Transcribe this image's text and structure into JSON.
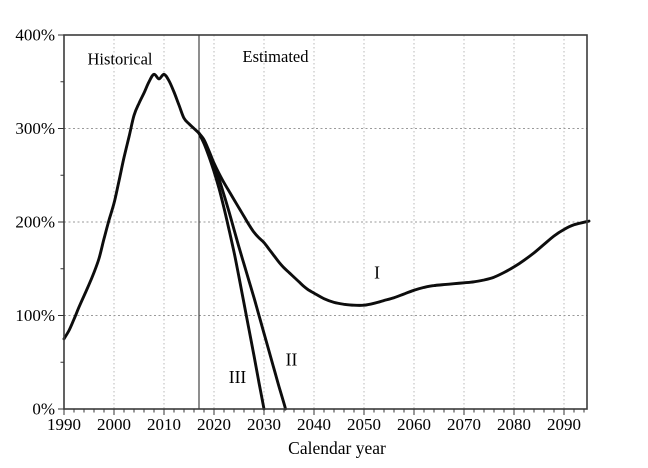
{
  "figure": {
    "xlabel": "Calendar year",
    "region_labels": [
      {
        "id": "historical",
        "text": "Historical",
        "year": 2001.2,
        "value": 374.5
      },
      {
        "id": "estimated",
        "text": "Estimated",
        "year": 2032.3,
        "value": 377
      }
    ],
    "series_labels": [
      {
        "id": "alt-1",
        "text": "I",
        "year": 2052.6,
        "value": 146
      },
      {
        "id": "alt-2",
        "text": "II",
        "year": 2035.5,
        "value": 53
      },
      {
        "id": "alt-3",
        "text": "III",
        "year": 2024.7,
        "value": 34
      }
    ]
  },
  "colors": {
    "line": "#0d0d0d",
    "frame": "#3c3c3c",
    "grid_vertical": "#b8b8b8",
    "grid_horizontal": "#9a9a9a",
    "divider": "#333333",
    "tick": "#333333",
    "background": "#ffffff"
  },
  "chart_data": {
    "type": "line",
    "title": "",
    "xlabel": "Calendar year",
    "ylabel": "",
    "xlim": [
      1990,
      2094.6
    ],
    "ylim": [
      0,
      400
    ],
    "x_ticks_major": [
      1990,
      2000,
      2010,
      2020,
      2030,
      2040,
      2050,
      2060,
      2070,
      2080,
      2090
    ],
    "x_tick_labels": [
      "1990",
      "2000",
      "2010",
      "2020",
      "2030",
      "2040",
      "2050",
      "2060",
      "2070",
      "2080",
      "2090"
    ],
    "y_ticks_major": [
      0,
      100,
      200,
      300,
      400
    ],
    "y_tick_labels": [
      "0%",
      "100%",
      "200%",
      "300%",
      "400%"
    ],
    "x_minor_step": 2,
    "y_minor_step": 50,
    "grid": "dotted",
    "legend_position": "none",
    "divider_year": 2017,
    "series": [
      {
        "name": "Historical",
        "points": [
          [
            1990,
            75
          ],
          [
            1991,
            84
          ],
          [
            1992,
            96
          ],
          [
            1993,
            109
          ],
          [
            1994,
            121
          ],
          [
            1995,
            133
          ],
          [
            1996,
            146
          ],
          [
            1997,
            161
          ],
          [
            1998,
            182
          ],
          [
            1999,
            202
          ],
          [
            2000,
            220
          ],
          [
            2001,
            244
          ],
          [
            2002,
            269
          ],
          [
            2003,
            291
          ],
          [
            2004,
            314
          ],
          [
            2005,
            327
          ],
          [
            2006,
            338
          ],
          [
            2007,
            350
          ],
          [
            2008,
            358
          ],
          [
            2009,
            353
          ],
          [
            2010,
            358
          ],
          [
            2011,
            351
          ],
          [
            2012,
            339
          ],
          [
            2013,
            325
          ],
          [
            2014,
            311
          ],
          [
            2015,
            305
          ],
          [
            2016,
            300
          ],
          [
            2017,
            295
          ]
        ]
      },
      {
        "name": "I",
        "points": [
          [
            2017,
            295
          ],
          [
            2018,
            288
          ],
          [
            2019,
            276
          ],
          [
            2020,
            263
          ],
          [
            2021,
            252
          ],
          [
            2022,
            242
          ],
          [
            2023,
            233
          ],
          [
            2024,
            224
          ],
          [
            2025,
            215
          ],
          [
            2026,
            206
          ],
          [
            2027,
            197
          ],
          [
            2028,
            189
          ],
          [
            2029,
            183
          ],
          [
            2030,
            178
          ],
          [
            2031,
            171
          ],
          [
            2032,
            164
          ],
          [
            2033,
            157
          ],
          [
            2034,
            151
          ],
          [
            2035,
            146
          ],
          [
            2036,
            141
          ],
          [
            2037,
            136
          ],
          [
            2038,
            131
          ],
          [
            2039,
            127
          ],
          [
            2040,
            124
          ],
          [
            2042,
            118
          ],
          [
            2044,
            114
          ],
          [
            2046,
            112
          ],
          [
            2048,
            111
          ],
          [
            2050,
            111
          ],
          [
            2052,
            113
          ],
          [
            2054,
            116
          ],
          [
            2056,
            119
          ],
          [
            2058,
            123
          ],
          [
            2060,
            127
          ],
          [
            2062,
            130
          ],
          [
            2064,
            132
          ],
          [
            2066,
            133
          ],
          [
            2068,
            134
          ],
          [
            2070,
            135
          ],
          [
            2072,
            136
          ],
          [
            2074,
            138
          ],
          [
            2076,
            141
          ],
          [
            2078,
            146
          ],
          [
            2080,
            152
          ],
          [
            2082,
            159
          ],
          [
            2084,
            167
          ],
          [
            2086,
            176
          ],
          [
            2088,
            185
          ],
          [
            2090,
            192
          ],
          [
            2092,
            197
          ],
          [
            2095,
            201
          ]
        ]
      },
      {
        "name": "II",
        "points": [
          [
            2017,
            295
          ],
          [
            2018,
            286
          ],
          [
            2019,
            274
          ],
          [
            2020,
            261
          ],
          [
            2021,
            246
          ],
          [
            2022,
            229
          ],
          [
            2023,
            211
          ],
          [
            2024,
            192
          ],
          [
            2025,
            173
          ],
          [
            2026,
            155
          ],
          [
            2027,
            137
          ],
          [
            2028,
            119
          ],
          [
            2029,
            100
          ],
          [
            2030,
            81
          ],
          [
            2031,
            62
          ],
          [
            2032,
            43
          ],
          [
            2033,
            24
          ],
          [
            2034,
            6
          ],
          [
            2034.3,
            0
          ]
        ]
      },
      {
        "name": "III",
        "points": [
          [
            2017,
            295
          ],
          [
            2018,
            284
          ],
          [
            2019,
            270
          ],
          [
            2020,
            254
          ],
          [
            2021,
            236
          ],
          [
            2022,
            215
          ],
          [
            2023,
            192
          ],
          [
            2024,
            168
          ],
          [
            2025,
            141
          ],
          [
            2026,
            113
          ],
          [
            2027,
            85
          ],
          [
            2028,
            57
          ],
          [
            2029,
            28
          ],
          [
            2030,
            0
          ]
        ]
      }
    ]
  }
}
